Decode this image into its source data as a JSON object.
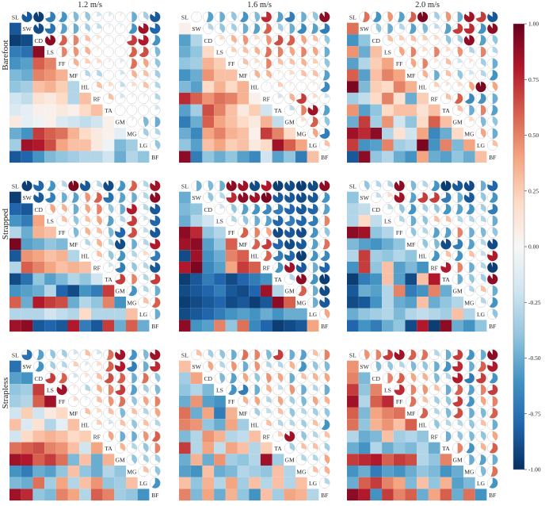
{
  "chart_data": {
    "type": "heatmap",
    "description_source": "3x3 grid of correlation matrices; lower triangle shown as colored squares, upper triangle as pie glyphs (sector size = |r|, color = r)",
    "speeds": [
      "1.2 m/s",
      "1.6 m/s",
      "2.0 m/s"
    ],
    "conditions": [
      "Barefoot",
      "Strapped",
      "Strapless"
    ],
    "variables": [
      "SL",
      "SW",
      "CD",
      "LS",
      "FF",
      "MF",
      "HL",
      "RF",
      "TA",
      "GM",
      "MG",
      "LG",
      "BF"
    ],
    "colorbar": {
      "min": -1.0,
      "max": 1.0,
      "ticks": [
        "1.00",
        "0.75",
        "0.50",
        "0.25",
        "0.00",
        "-0.25",
        "-0.50",
        "-0.75",
        "-1.00"
      ],
      "stops": [
        "#67001f",
        "#b2182b",
        "#d6604d",
        "#f4a582",
        "#fddbc7",
        "#f7f7f7",
        "#d1e5f0",
        "#92c5de",
        "#4393c3",
        "#2166ac",
        "#053061"
      ]
    },
    "panels": [
      [
        {
          "lower": [
            [
              -0.85
            ],
            [
              -0.95,
              -0.9
            ],
            [
              -0.7,
              -0.75,
              0.9
            ],
            [
              -0.6,
              -0.55,
              0.6,
              0.5
            ],
            [
              -0.45,
              -0.5,
              0.5,
              0.45,
              0.35
            ],
            [
              -0.4,
              -0.35,
              0.3,
              0.35,
              0.25,
              -0.3
            ],
            [
              -0.2,
              -0.25,
              0.15,
              0.1,
              0.2,
              -0.3,
              0.3
            ],
            [
              -0.15,
              -0.1,
              0.05,
              0.05,
              0.1,
              0.05,
              0.2,
              0.3
            ],
            [
              0.1,
              -0.1,
              -0.05,
              0.05,
              -0.15,
              -0.2,
              -0.25,
              -0.2,
              0.05
            ],
            [
              -0.5,
              -0.6,
              0.7,
              0.6,
              0.55,
              0.35,
              0.2,
              0.1,
              0.05,
              -0.1
            ],
            [
              -0.35,
              0.85,
              0.8,
              0.65,
              0.4,
              0.3,
              0.3,
              0.1,
              -0.05,
              -0.45,
              -0.35
            ],
            [
              -0.85,
              -0.8,
              -0.6,
              -0.45,
              -0.4,
              -0.35,
              -0.3,
              -0.3,
              -0.2,
              -0.5,
              -0.3,
              -0.4
            ]
          ]
        },
        {
          "lower": [
            [
              0.05
            ],
            [
              -0.55,
              -0.3
            ],
            [
              -0.5,
              -0.4,
              0.2
            ],
            [
              -0.4,
              -0.35,
              0.35,
              0.25
            ],
            [
              -0.6,
              -0.5,
              0.45,
              0.3,
              0.3
            ],
            [
              -0.45,
              -0.55,
              0.2,
              0.35,
              0.2,
              0.35
            ],
            [
              0.75,
              0.6,
              0.45,
              0.55,
              0.5,
              0.35,
              0.05
            ],
            [
              -0.55,
              -0.35,
              0.65,
              0.5,
              0.3,
              0.1,
              0.25,
              -0.2
            ],
            [
              -0.7,
              -0.5,
              0.6,
              0.4,
              0.3,
              0.2,
              0.1,
              0.35,
              -0.25
            ],
            [
              -0.5,
              -0.65,
              0.4,
              0.5,
              0.35,
              0.3,
              0.05,
              0.7,
              0.5,
              0.2
            ],
            [
              -0.4,
              -0.55,
              0.3,
              0.4,
              0.25,
              0.3,
              0.1,
              0.2,
              0.85,
              0.6,
              0.4
            ],
            [
              0.9,
              -0.7,
              -0.4,
              -0.5,
              -0.4,
              -0.55,
              -0.65,
              -0.2,
              -0.55,
              -0.4,
              -0.7,
              0.3
            ]
          ]
        },
        {
          "lower": [
            [
              0.55
            ],
            [
              -0.6,
              -0.4
            ],
            [
              0.45,
              -0.5,
              0.3
            ],
            [
              -0.55,
              -0.3,
              0.25,
              0.4
            ],
            [
              0.6,
              -0.55,
              0.3,
              0.5,
              0.4
            ],
            [
              0.95,
              -0.45,
              0.25,
              0.2,
              0.5,
              0.35
            ],
            [
              -0.35,
              -0.25,
              0.2,
              0.5,
              0.15,
              -0.5,
              0.25
            ],
            [
              0.45,
              -0.55,
              -0.4,
              0.2,
              0.3,
              0.3,
              0.15,
              0.3
            ],
            [
              -0.5,
              0.7,
              -0.35,
              0.45,
              -0.2,
              -0.4,
              0.2,
              0.6,
              0.3
            ],
            [
              0.85,
              0.75,
              0.9,
              -0.3,
              0.15,
              -0.2,
              0.4,
              -0.65,
              -0.5,
              0.2
            ],
            [
              0.7,
              -0.6,
              -0.55,
              0.5,
              -0.35,
              -0.3,
              0.95,
              -0.6,
              0.5,
              -0.45,
              0.4
            ],
            [
              -0.85,
              0.9,
              -0.4,
              -0.3,
              -0.5,
              -0.6,
              0.4,
              -0.5,
              -0.55,
              -0.4,
              -0.5,
              0.3
            ]
          ]
        }
      ],
      [
        {
          "lower": [
            [
              -0.95
            ],
            [
              -0.8,
              -0.85
            ],
            [
              -0.6,
              -0.7,
              0.4
            ],
            [
              -0.3,
              -0.5,
              0.35,
              0.3
            ],
            [
              0.95,
              -0.55,
              -0.5,
              -0.4,
              -0.45
            ],
            [
              -0.85,
              0.45,
              0.4,
              0.3,
              0.35,
              -0.3
            ],
            [
              -0.3,
              0.6,
              0.5,
              0.4,
              0.3,
              0.35,
              0.3
            ],
            [
              -0.9,
              -0.75,
              -0.4,
              -0.55,
              -0.45,
              -0.3,
              -0.4,
              -0.2
            ],
            [
              -0.6,
              -0.55,
              -0.5,
              -0.3,
              -0.8,
              -0.9,
              -0.6,
              -0.7,
              0.7
            ],
            [
              0.6,
              -0.5,
              0.8,
              0.7,
              0.65,
              -0.5,
              -0.3,
              -0.4,
              0.5,
              -0.6
            ],
            [
              -0.3,
              -0.3,
              -0.3,
              -0.2,
              -0.25,
              -0.3,
              0.2,
              -0.3,
              -0.3,
              -0.3,
              0.3
            ],
            [
              0.85,
              0.9,
              -0.85,
              -0.8,
              -0.85,
              0.8,
              -0.7,
              -0.85,
              0.7,
              -0.5,
              0.6,
              -0.5
            ]
          ]
        },
        {
          "lower": [
            [
              -0.5
            ],
            [
              -0.45,
              -0.4
            ],
            [
              -0.5,
              -0.3,
              -0.2
            ],
            [
              0.9,
              0.75,
              -0.4,
              -0.3
            ],
            [
              0.85,
              0.9,
              -0.55,
              -0.4,
              0.6
            ],
            [
              -0.9,
              0.85,
              -0.6,
              -0.5,
              0.5,
              0.6
            ],
            [
              0.8,
              0.95,
              -0.65,
              -0.55,
              0.4,
              0.7,
              0.6
            ],
            [
              -0.95,
              -0.85,
              -0.7,
              -0.8,
              -0.9,
              -0.8,
              -0.7,
              -0.6
            ],
            [
              -0.9,
              -0.85,
              -0.8,
              -0.7,
              -0.85,
              -0.9,
              -0.8,
              0.85,
              -0.3
            ],
            [
              -0.95,
              -0.9,
              -0.85,
              -0.8,
              -0.9,
              -0.85,
              -0.95,
              -0.85,
              0.9,
              0.6
            ],
            [
              -0.9,
              -0.85,
              -0.8,
              -0.7,
              -0.6,
              -0.55,
              -0.6,
              -0.5,
              -0.6,
              -0.5,
              -0.5
            ],
            [
              0.9,
              -0.6,
              -0.55,
              0.5,
              -0.4,
              0.55,
              -0.65,
              -0.8,
              -0.95,
              -0.9,
              -0.85,
              0.4
            ]
          ]
        },
        {
          "lower": [
            [
              -0.4
            ],
            [
              -0.3,
              -0.25
            ],
            [
              -0.3,
              0.2,
              -0.25
            ],
            [
              0.9,
              0.85,
              -0.4,
              -0.3
            ],
            [
              -0.45,
              -0.55,
              -0.6,
              -0.5,
              -0.4
            ],
            [
              -0.3,
              0.7,
              -0.35,
              -0.4,
              -0.3,
              -0.4
            ],
            [
              -0.6,
              0.7,
              -0.4,
              0.3,
              -0.55,
              -0.45,
              -0.6
            ],
            [
              -0.95,
              -0.7,
              -0.6,
              0.3,
              -0.55,
              -0.9,
              0.3,
              0.8
            ],
            [
              -0.85,
              -0.5,
              -0.55,
              -0.3,
              0.5,
              -0.7,
              -0.6,
              0.5,
              -0.5
            ],
            [
              -0.9,
              -0.85,
              -0.6,
              -0.3,
              -0.5,
              -0.55,
              0.3,
              -0.5,
              -0.4,
              -0.3
            ],
            [
              -0.5,
              -0.4,
              -0.35,
              -0.3,
              -0.45,
              -0.3,
              -0.25,
              -0.3,
              -0.35,
              0.3,
              -0.3
            ],
            [
              -0.8,
              -0.6,
              -0.7,
              -0.5,
              -0.4,
              -0.9,
              0.8,
              -0.95,
              0.9,
              -0.5,
              -0.6,
              -0.4
            ]
          ]
        }
      ],
      [
        {
          "lower": [
            [
              -0.75
            ],
            [
              -0.55,
              -0.6
            ],
            [
              -0.4,
              -0.35,
              0.7
            ],
            [
              -0.35,
              -0.3,
              0.6,
              0.85
            ],
            [
              -0.2,
              0.25,
              -0.2,
              0.1,
              0.2
            ],
            [
              0.3,
              -0.15,
              0.15,
              -0.3,
              -0.1,
              0.3
            ],
            [
              -0.2,
              0.2,
              0.3,
              0.35,
              0.3,
              0.2,
              0.25
            ],
            [
              0.55,
              0.6,
              0.65,
              0.5,
              0.45,
              0.3,
              -0.2,
              0.4
            ],
            [
              0.85,
              0.8,
              0.6,
              0.7,
              0.55,
              -0.45,
              0.3,
              -0.5,
              0.35
            ],
            [
              -0.6,
              -0.7,
              -0.5,
              -0.55,
              -0.4,
              0.3,
              -0.4,
              -0.5,
              -0.3,
              -0.4
            ],
            [
              -0.45,
              -0.5,
              0.55,
              -0.35,
              0.4,
              -0.3,
              0.3,
              0.45,
              -0.4,
              -0.35,
              0.3
            ],
            [
              0.85,
              0.75,
              -0.4,
              -0.45,
              0.5,
              0.4,
              -0.3,
              0.6,
              0.5,
              -0.35,
              -0.4,
              -0.6
            ]
          ]
        },
        {
          "lower": [
            [
              0.3
            ],
            [
              -0.35,
              0.4
            ],
            [
              -0.4,
              -0.3,
              -0.45
            ],
            [
              -0.5,
              0.45,
              -0.55,
              -0.6
            ],
            [
              0.55,
              -0.5,
              0.4,
              -0.7,
              0.35
            ],
            [
              0.5,
              0.45,
              -0.4,
              -0.5,
              0.4,
              -0.35
            ],
            [
              -0.45,
              -0.3,
              0.45,
              0.35,
              -0.3,
              -0.25,
              0.3
            ],
            [
              0.7,
              -0.3,
              0.4,
              -0.25,
              0.4,
              0.3,
              -0.3,
              0.25
            ],
            [
              -0.5,
              0.35,
              -0.5,
              0.45,
              -0.35,
              -0.4,
              -0.3,
              0.85,
              -0.35
            ],
            [
              -0.55,
              -0.6,
              0.3,
              -0.5,
              -0.45,
              -0.3,
              -0.35,
              -0.4,
              0.3,
              -0.3
            ],
            [
              0.3,
              -0.4,
              0.35,
              -0.3,
              0.4,
              -0.35,
              0.3,
              -0.3,
              0.3,
              -0.3,
              0.3
            ],
            [
              0.5,
              -0.45,
              0.4,
              -0.5,
              0.35,
              -0.4,
              -0.6,
              0.3,
              -0.35,
              0.4,
              0.35,
              -0.3
            ]
          ]
        },
        {
          "lower": [
            [
              0.45
            ],
            [
              0.5,
              -0.45
            ],
            [
              0.7,
              -0.4,
              0.5
            ],
            [
              0.85,
              -0.3,
              0.6,
              0.75
            ],
            [
              0.6,
              -0.45,
              0.4,
              0.5,
              0.55
            ],
            [
              0.55,
              -0.4,
              0.35,
              0.45,
              0.3,
              0.6
            ],
            [
              -0.3,
              -0.5,
              -0.45,
              0.3,
              -0.35,
              -0.3,
              -0.4
            ],
            [
              -0.5,
              -0.6,
              -0.3,
              -0.5,
              -0.4,
              -0.45,
              -0.3,
              -0.5
            ],
            [
              0.7,
              0.75,
              0.8,
              0.6,
              0.7,
              0.65,
              -0.3,
              -0.4,
              0.5
            ],
            [
              -0.6,
              -0.5,
              -0.7,
              -0.55,
              -0.6,
              -0.5,
              -0.4,
              -0.45,
              -0.6,
              -0.5
            ],
            [
              -0.5,
              0.6,
              0.7,
              0.5,
              0.4,
              -0.45,
              0.3,
              -0.4,
              0.35,
              -0.55,
              -0.45
            ],
            [
              0.9,
              0.8,
              -0.6,
              0.7,
              0.5,
              0.6,
              -0.5,
              0.4,
              0.6,
              -0.5,
              0.55,
              -0.6
            ]
          ]
        }
      ]
    ],
    "upper_note": "upper triangle pie glyphs mirror the lower-triangle values"
  }
}
